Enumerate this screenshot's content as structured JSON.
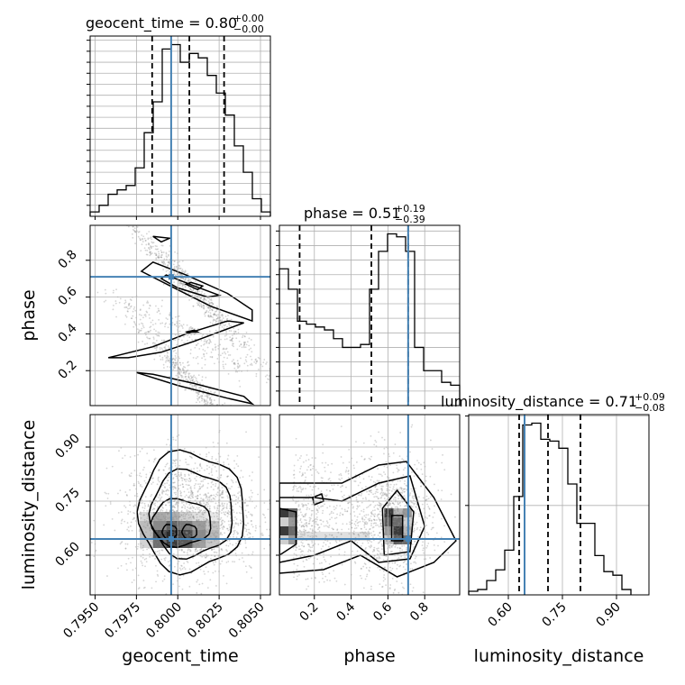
{
  "chart_data": {
    "type": "corner",
    "parameters": [
      "geocent_time",
      "phase",
      "luminosity_distance"
    ],
    "injection": {
      "geocent_time": 0.7996,
      "phase": 0.71,
      "luminosity_distance": 0.645
    },
    "ranges": {
      "geocent_time": [
        0.7947,
        0.8056
      ],
      "phase": [
        0.01,
        0.99
      ],
      "luminosity_distance": [
        0.49,
        0.99
      ]
    },
    "diagonal": [
      {
        "parameter": "geocent_time",
        "title_main": "geocent_time = 0.80",
        "title_plus": "+0.00",
        "title_minus": "−0.00",
        "quantiles": [
          0.79845,
          0.8007,
          0.8028
        ],
        "bin_edges_start": 0.7947,
        "bin_width": 0.000545,
        "counts": [
          2,
          5,
          10,
          12,
          14,
          22,
          38,
          52,
          76,
          78,
          70,
          74,
          72,
          64,
          56,
          46,
          32,
          20,
          8,
          2
        ]
      },
      {
        "parameter": "phase",
        "title_main": "phase = 0.51",
        "title_plus": "+0.19",
        "title_minus": "−0.39",
        "quantiles": [
          0.12,
          0.51,
          0.71
        ],
        "bin_edges_start": 0.01,
        "bin_width": 0.049,
        "counts": [
          47,
          40,
          29,
          28,
          27,
          26,
          23,
          20,
          20,
          21,
          40,
          53,
          59,
          58,
          53,
          20,
          12,
          12,
          8,
          7
        ]
      },
      {
        "parameter": "luminosity_distance",
        "title_main": "luminosity_distance = 0.71",
        "title_plus": "+0.09",
        "title_minus": "−0.08",
        "quantiles": [
          0.63,
          0.71,
          0.8
        ],
        "bin_edges_start": 0.49,
        "bin_width": 0.025,
        "counts": [
          2,
          3,
          8,
          14,
          25,
          55,
          95,
          96,
          87,
          86,
          82,
          62,
          40,
          40,
          22,
          13,
          11,
          3
        ]
      }
    ],
    "offdiagonal": [
      {
        "x": "geocent_time",
        "y": "phase"
      },
      {
        "x": "geocent_time",
        "y": "luminosity_distance"
      },
      {
        "x": "phase",
        "y": "luminosity_distance"
      }
    ],
    "ticks": {
      "geocent_time": [
        "0.7950",
        "0.7975",
        "0.8000",
        "0.8025",
        "0.8050"
      ],
      "geocent_time_values": [
        0.795,
        0.7975,
        0.8,
        0.8025,
        0.805
      ],
      "phase": [
        "0.2",
        "0.4",
        "0.6",
        "0.8"
      ],
      "phase_values": [
        0.2,
        0.4,
        0.6,
        0.8
      ],
      "luminosity_distance": [
        "0.60",
        "0.75",
        "0.90"
      ],
      "luminosity_distance_values": [
        0.6,
        0.75,
        0.9
      ]
    },
    "axis_labels": {
      "x": [
        "geocent_time",
        "phase",
        "luminosity_distance"
      ],
      "y": [
        "phase",
        "luminosity_distance"
      ]
    },
    "grid": true,
    "colors": {
      "histogram": "#000000",
      "injection": "#4682b4",
      "grid": "#b0b0b0",
      "scatter": "#888888"
    }
  }
}
